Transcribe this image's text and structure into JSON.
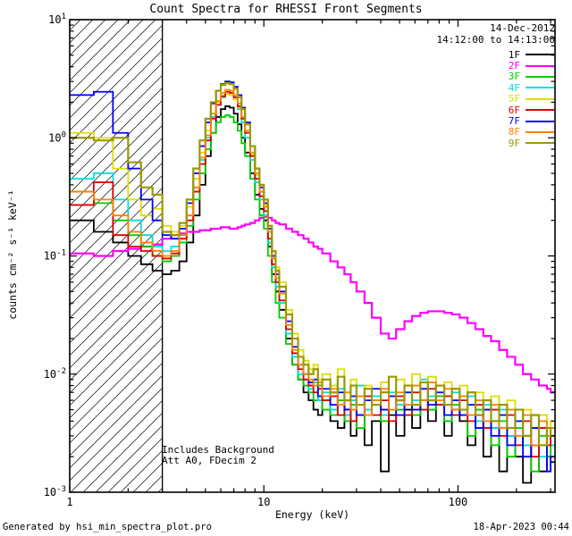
{
  "header": {
    "title": "Count Spectra for RHESSI Front Segments",
    "date": "14-Dec-2012",
    "interval": "14:12:00 to 14:13:00"
  },
  "annotations": {
    "background": "Includes Background",
    "attenuator": "Att A0, FDecim 2"
  },
  "footer": {
    "left": "Generated by hsi_min_spectra_plot.pro",
    "right": "18-Apr-2023 00:44"
  },
  "chart_data": {
    "type": "line",
    "mode": "step",
    "title": "Count Spectra for RHESSI Front Segments",
    "x_label": "Energy (keV)",
    "y_label": "counts cm⁻² s⁻¹ keV⁻¹",
    "x_scale": "log",
    "y_scale": "log",
    "x_range": [
      1,
      316
    ],
    "y_range": [
      0.001,
      10
    ],
    "x_ticks": [
      1,
      10,
      100
    ],
    "y_ticks": [
      0.001,
      0.01,
      0.1,
      1,
      10
    ],
    "hatch_region": [
      1,
      3
    ],
    "legend_position": "upper-right",
    "x": [
      1.0,
      1.33,
      1.67,
      2.0,
      2.33,
      2.67,
      3.0,
      3.33,
      3.67,
      4.0,
      4.33,
      4.67,
      5.0,
      5.33,
      5.67,
      6.0,
      6.33,
      6.67,
      7.0,
      7.33,
      7.67,
      8.0,
      8.5,
      9.0,
      9.5,
      10.0,
      10.5,
      11.0,
      11.5,
      12.0,
      13.0,
      14.0,
      15.0,
      16.0,
      17.0,
      18.0,
      19.0,
      20.0,
      22.0,
      24.0,
      26.0,
      28.0,
      30.0,
      33.0,
      36.0,
      40.0,
      44.0,
      48.0,
      53.0,
      58.0,
      64.0,
      70.0,
      77.0,
      85.0,
      93.0,
      102.0,
      112.0,
      123.0,
      135.0,
      148.0,
      163.0,
      179.0,
      197.0,
      216.0,
      238.0,
      261.0,
      287.0,
      300.0
    ],
    "series": [
      {
        "name": "1F",
        "color": "#000000",
        "width": 1.8,
        "values": [
          0.2,
          0.16,
          0.13,
          0.1,
          0.085,
          0.075,
          0.07,
          0.075,
          0.09,
          0.13,
          0.22,
          0.4,
          0.7,
          1.1,
          1.5,
          1.75,
          1.85,
          1.8,
          1.6,
          1.3,
          1.0,
          0.75,
          0.5,
          0.33,
          0.25,
          0.2,
          0.12,
          0.07,
          0.05,
          0.035,
          0.02,
          0.012,
          0.009,
          0.007,
          0.006,
          0.005,
          0.0045,
          0.006,
          0.004,
          0.0035,
          0.005,
          0.003,
          0.0045,
          0.0025,
          0.004,
          0.0015,
          0.0045,
          0.003,
          0.005,
          0.0035,
          0.006,
          0.004,
          0.0055,
          0.003,
          0.005,
          0.004,
          0.0025,
          0.0045,
          0.002,
          0.0035,
          0.0015,
          0.003,
          0.002,
          0.0012,
          0.0025,
          0.0015,
          0.002,
          0.0018
        ]
      },
      {
        "name": "2F",
        "color": "#ff00ff",
        "width": 2.2,
        "values": [
          0.105,
          0.1,
          0.11,
          0.115,
          0.12,
          0.125,
          0.14,
          0.15,
          0.155,
          0.16,
          0.16,
          0.165,
          0.165,
          0.17,
          0.17,
          0.175,
          0.175,
          0.17,
          0.17,
          0.175,
          0.18,
          0.185,
          0.19,
          0.2,
          0.21,
          0.215,
          0.21,
          0.2,
          0.19,
          0.185,
          0.17,
          0.16,
          0.15,
          0.14,
          0.13,
          0.12,
          0.115,
          0.105,
          0.09,
          0.08,
          0.07,
          0.06,
          0.05,
          0.04,
          0.03,
          0.022,
          0.02,
          0.024,
          0.028,
          0.031,
          0.033,
          0.034,
          0.034,
          0.033,
          0.032,
          0.03,
          0.027,
          0.024,
          0.021,
          0.019,
          0.016,
          0.014,
          0.012,
          0.01,
          0.009,
          0.008,
          0.0075,
          0.007
        ]
      },
      {
        "name": "3F",
        "color": "#00cc00",
        "width": 1.8,
        "values": [
          0.35,
          0.28,
          0.2,
          0.15,
          0.12,
          0.1,
          0.09,
          0.1,
          0.13,
          0.18,
          0.3,
          0.5,
          0.8,
          1.1,
          1.35,
          1.5,
          1.55,
          1.5,
          1.35,
          1.15,
          0.9,
          0.7,
          0.45,
          0.3,
          0.22,
          0.17,
          0.1,
          0.06,
          0.04,
          0.03,
          0.018,
          0.012,
          0.009,
          0.008,
          0.007,
          0.006,
          0.0065,
          0.005,
          0.0045,
          0.006,
          0.004,
          0.0055,
          0.0035,
          0.005,
          0.006,
          0.004,
          0.0065,
          0.005,
          0.007,
          0.0045,
          0.006,
          0.005,
          0.0065,
          0.004,
          0.0055,
          0.0045,
          0.003,
          0.005,
          0.0035,
          0.0025,
          0.004,
          0.002,
          0.0035,
          0.0025,
          0.0015,
          0.003,
          0.002,
          0.0025
        ]
      },
      {
        "name": "4F",
        "color": "#00dede",
        "width": 1.8,
        "values": [
          0.45,
          0.5,
          0.3,
          0.2,
          0.15,
          0.12,
          0.11,
          0.12,
          0.15,
          0.22,
          0.38,
          0.65,
          1.0,
          1.5,
          1.9,
          2.2,
          2.35,
          2.3,
          2.1,
          1.75,
          1.35,
          1.0,
          0.65,
          0.42,
          0.3,
          0.22,
          0.13,
          0.08,
          0.055,
          0.04,
          0.022,
          0.014,
          0.01,
          0.009,
          0.0075,
          0.0085,
          0.006,
          0.007,
          0.005,
          0.0075,
          0.0045,
          0.006,
          0.008,
          0.005,
          0.0065,
          0.0045,
          0.007,
          0.0055,
          0.008,
          0.006,
          0.009,
          0.0065,
          0.008,
          0.0055,
          0.007,
          0.005,
          0.0065,
          0.004,
          0.0055,
          0.0035,
          0.005,
          0.003,
          0.004,
          0.0025,
          0.0035,
          0.002,
          0.003,
          0.0025
        ]
      },
      {
        "name": "5F",
        "color": "#dddd00",
        "width": 1.8,
        "values": [
          1.1,
          1.0,
          0.55,
          0.3,
          0.22,
          0.25,
          0.18,
          0.16,
          0.18,
          0.26,
          0.45,
          0.75,
          1.15,
          1.6,
          2.0,
          2.25,
          2.35,
          2.3,
          2.1,
          1.8,
          1.45,
          1.1,
          0.72,
          0.48,
          0.35,
          0.27,
          0.17,
          0.11,
          0.08,
          0.06,
          0.035,
          0.022,
          0.016,
          0.013,
          0.011,
          0.012,
          0.009,
          0.01,
          0.008,
          0.011,
          0.007,
          0.009,
          0.0065,
          0.008,
          0.006,
          0.0085,
          0.0065,
          0.009,
          0.007,
          0.01,
          0.0075,
          0.0095,
          0.007,
          0.0085,
          0.006,
          0.008,
          0.0055,
          0.007,
          0.005,
          0.0065,
          0.0045,
          0.006,
          0.004,
          0.005,
          0.0035,
          0.0045,
          0.003,
          0.004
        ]
      },
      {
        "name": "6F",
        "color": "#dd0000",
        "width": 1.8,
        "values": [
          0.27,
          0.42,
          0.15,
          0.12,
          0.11,
          0.1,
          0.095,
          0.105,
          0.14,
          0.2,
          0.35,
          0.6,
          0.95,
          1.45,
          1.9,
          2.25,
          2.45,
          2.4,
          2.2,
          1.85,
          1.45,
          1.1,
          0.7,
          0.45,
          0.32,
          0.24,
          0.14,
          0.085,
          0.06,
          0.042,
          0.024,
          0.015,
          0.011,
          0.009,
          0.008,
          0.007,
          0.0075,
          0.006,
          0.0065,
          0.0045,
          0.006,
          0.004,
          0.0055,
          0.0065,
          0.0045,
          0.006,
          0.004,
          0.0065,
          0.0045,
          0.007,
          0.005,
          0.0075,
          0.0055,
          0.0065,
          0.0045,
          0.006,
          0.004,
          0.0055,
          0.0035,
          0.005,
          0.003,
          0.0045,
          0.0025,
          0.004,
          0.002,
          0.0035,
          0.0025,
          0.003
        ]
      },
      {
        "name": "7F",
        "color": "#0000ff",
        "width": 1.8,
        "values": [
          2.3,
          2.45,
          1.1,
          0.55,
          0.3,
          0.2,
          0.15,
          0.14,
          0.17,
          0.28,
          0.5,
          0.85,
          1.35,
          1.95,
          2.5,
          2.85,
          3.0,
          2.95,
          2.7,
          2.3,
          1.8,
          1.35,
          0.85,
          0.55,
          0.38,
          0.28,
          0.17,
          0.1,
          0.07,
          0.05,
          0.028,
          0.017,
          0.012,
          0.01,
          0.0085,
          0.009,
          0.0065,
          0.0075,
          0.0055,
          0.007,
          0.005,
          0.0065,
          0.0045,
          0.006,
          0.0075,
          0.005,
          0.0065,
          0.0045,
          0.007,
          0.005,
          0.0075,
          0.0055,
          0.007,
          0.0045,
          0.006,
          0.0045,
          0.0055,
          0.0035,
          0.005,
          0.003,
          0.0045,
          0.0025,
          0.004,
          0.002,
          0.0035,
          0.0025,
          0.0015,
          0.002
        ]
      },
      {
        "name": "8F",
        "color": "#ff8000",
        "width": 1.8,
        "values": [
          0.35,
          0.3,
          0.22,
          0.16,
          0.13,
          0.11,
          0.1,
          0.11,
          0.15,
          0.22,
          0.38,
          0.68,
          1.05,
          1.6,
          2.05,
          2.4,
          2.55,
          2.5,
          2.3,
          1.95,
          1.5,
          1.15,
          0.75,
          0.5,
          0.35,
          0.26,
          0.16,
          0.095,
          0.065,
          0.048,
          0.026,
          0.016,
          0.012,
          0.01,
          0.009,
          0.008,
          0.0085,
          0.0065,
          0.0075,
          0.0055,
          0.007,
          0.005,
          0.0065,
          0.0045,
          0.006,
          0.0075,
          0.005,
          0.007,
          0.0055,
          0.008,
          0.006,
          0.0085,
          0.006,
          0.0075,
          0.005,
          0.0065,
          0.0045,
          0.006,
          0.004,
          0.0055,
          0.0035,
          0.005,
          0.003,
          0.0045,
          0.0025,
          0.004,
          0.003,
          0.0035
        ]
      },
      {
        "name": "9F",
        "color": "#999900",
        "width": 2.2,
        "values": [
          1.0,
          0.95,
          1.0,
          0.62,
          0.38,
          0.33,
          0.16,
          0.15,
          0.19,
          0.3,
          0.55,
          0.95,
          1.45,
          2.0,
          2.5,
          2.8,
          2.9,
          2.85,
          2.6,
          2.2,
          1.75,
          1.3,
          0.85,
          0.55,
          0.4,
          0.3,
          0.18,
          0.11,
          0.075,
          0.055,
          0.032,
          0.02,
          0.014,
          0.012,
          0.01,
          0.011,
          0.008,
          0.009,
          0.007,
          0.0095,
          0.006,
          0.008,
          0.0055,
          0.0075,
          0.0055,
          0.007,
          0.0095,
          0.006,
          0.008,
          0.0055,
          0.0085,
          0.006,
          0.008,
          0.0055,
          0.0075,
          0.005,
          0.007,
          0.0045,
          0.006,
          0.004,
          0.0055,
          0.0035,
          0.005,
          0.003,
          0.0045,
          0.0025,
          0.0035,
          0.003
        ]
      }
    ]
  }
}
